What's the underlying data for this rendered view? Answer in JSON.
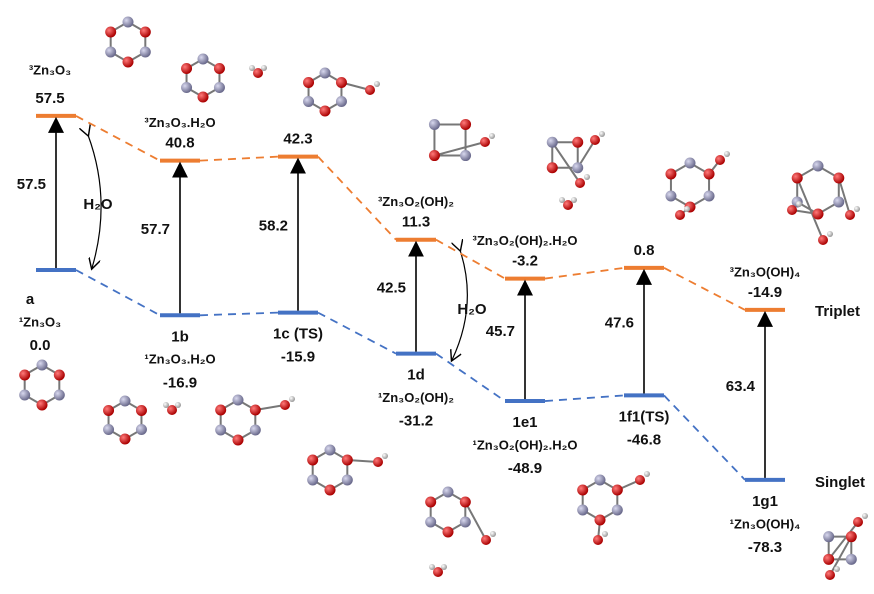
{
  "states": [
    {
      "label": "a",
      "singlet": {
        "name": "¹Zn₃O₃",
        "energy": "0.0"
      },
      "triplet": {
        "name": "³Zn₃O₃",
        "energy": "57.5"
      },
      "gap": "57.5"
    },
    {
      "label": "1b",
      "singlet": {
        "name": "¹Zn₃O₃.H₂O",
        "energy": "-16.9"
      },
      "triplet": {
        "name": "³Zn₃O₃.H₂O",
        "energy": "40.8"
      },
      "gap": "57.7"
    },
    {
      "label": "1c (TS)",
      "singlet": {
        "energy": "-15.9"
      },
      "triplet": {
        "energy": "42.3"
      },
      "gap": "58.2"
    },
    {
      "label": "1d",
      "singlet": {
        "name": "¹Zn₃O₂(OH)₂",
        "energy": "-31.2"
      },
      "triplet": {
        "name": "³Zn₃O₂(OH)₂",
        "energy": "11.3"
      },
      "gap": "42.5"
    },
    {
      "label": "1e1",
      "singlet": {
        "name": "¹Zn₃O₂(OH)₂.H₂O",
        "energy": "-48.9"
      },
      "triplet": {
        "name": "³Zn₃O₂(OH)₂.H₂O",
        "energy": "-3.2"
      },
      "gap": "45.7"
    },
    {
      "label": "1f1(TS)",
      "singlet": {
        "energy": "-46.8"
      },
      "triplet": {
        "energy": "0.8"
      },
      "gap": "47.6"
    },
    {
      "label": "1g1",
      "singlet": {
        "name": "¹Zn₃O(OH)₄",
        "energy": "-78.3"
      },
      "triplet": {
        "name": "³Zn₃O(OH)₄",
        "energy": "-14.9"
      },
      "gap": "63.4"
    }
  ],
  "spin_labels": {
    "triplet": "Triplet",
    "singlet": "Singlet"
  },
  "water_labels": [
    "H₂O",
    "H₂O"
  ]
}
